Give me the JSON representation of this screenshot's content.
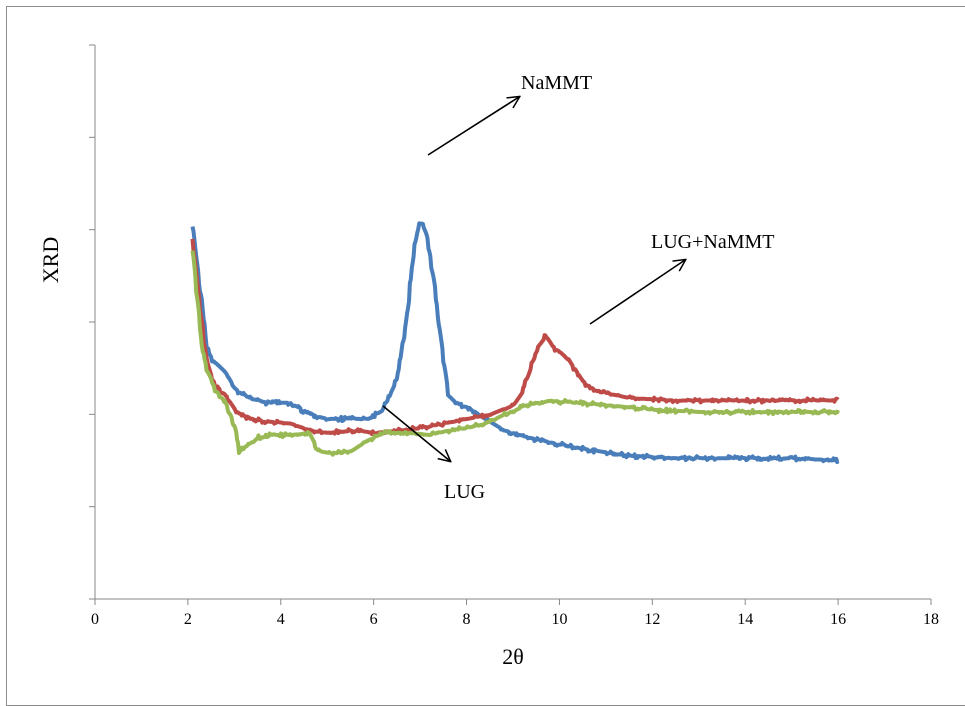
{
  "chart_data": {
    "type": "line",
    "title": "",
    "xlabel": "2θ",
    "ylabel": "XRD",
    "xlim": [
      0,
      18
    ],
    "x_ticks": [
      "0",
      "2",
      "4",
      "6",
      "8",
      "10",
      "12",
      "14",
      "16",
      "18"
    ],
    "y_ticks_labeled": false,
    "grid": false,
    "legend": "none",
    "series": [
      {
        "color": "#4a7ebb",
        "x": [
          2.1,
          2.15,
          2.2,
          2.3,
          2.4,
          2.5,
          2.6,
          2.8,
          3.0,
          3.3,
          3.7,
          4.2,
          4.6,
          5.0,
          5.5,
          5.9,
          6.2,
          6.5,
          6.7,
          6.85,
          6.95,
          7.05,
          7.15,
          7.3,
          7.45,
          7.6,
          7.75,
          8.0,
          8.3,
          8.8,
          9.5,
          10.5,
          11.5,
          12.5,
          14.0,
          15.0,
          16.0
        ],
        "y": [
          8.1,
          7.5,
          7.1,
          6.4,
          5.5,
          5.2,
          5.1,
          4.9,
          4.55,
          4.35,
          4.25,
          4.25,
          4.0,
          3.9,
          3.9,
          3.9,
          4.1,
          4.8,
          6.0,
          7.5,
          8.1,
          8.15,
          7.8,
          6.8,
          5.5,
          4.4,
          4.25,
          4.15,
          3.95,
          3.65,
          3.45,
          3.25,
          3.1,
          3.05,
          3.05,
          3.05,
          3.0
        ]
      },
      {
        "color": "#be4b48",
        "x": [
          2.1,
          2.15,
          2.2,
          2.3,
          2.4,
          2.5,
          2.6,
          2.8,
          3.0,
          3.2,
          3.6,
          4.2,
          4.6,
          5.0,
          5.6,
          6.0,
          6.6,
          7.0,
          7.5,
          8.0,
          8.5,
          9.0,
          9.2,
          9.4,
          9.55,
          9.7,
          9.85,
          10.0,
          10.2,
          10.5,
          10.8,
          11.5,
          12.5,
          14.0,
          16.0
        ],
        "y": [
          7.8,
          7.2,
          6.7,
          5.9,
          5.1,
          4.8,
          4.6,
          4.4,
          4.1,
          3.95,
          3.85,
          3.8,
          3.65,
          3.6,
          3.65,
          3.6,
          3.65,
          3.7,
          3.8,
          3.9,
          4.0,
          4.2,
          4.5,
          5.1,
          5.5,
          5.7,
          5.45,
          5.35,
          5.15,
          4.7,
          4.5,
          4.35,
          4.3,
          4.3,
          4.3
        ]
      },
      {
        "color": "#98b954",
        "x": [
          2.1,
          2.15,
          2.2,
          2.3,
          2.4,
          2.6,
          2.8,
          3.0,
          3.1,
          3.3,
          3.5,
          3.8,
          4.2,
          4.6,
          4.8,
          5.1,
          5.5,
          5.8,
          6.2,
          6.8,
          7.2,
          7.6,
          8.0,
          8.4,
          8.8,
          9.3,
          9.8,
          10.3,
          11.0,
          12.0,
          13.0,
          14.0,
          16.0
        ],
        "y": [
          7.5,
          6.9,
          6.4,
          5.5,
          4.95,
          4.5,
          4.25,
          3.75,
          3.2,
          3.35,
          3.5,
          3.55,
          3.55,
          3.6,
          3.2,
          3.15,
          3.2,
          3.4,
          3.6,
          3.6,
          3.55,
          3.65,
          3.7,
          3.8,
          4.0,
          4.2,
          4.3,
          4.25,
          4.2,
          4.1,
          4.05,
          4.05,
          4.05
        ]
      }
    ],
    "annotations": [
      {
        "text": "NaMMT"
      },
      {
        "text": "LUG+NaMMT"
      },
      {
        "text": "LUG"
      }
    ]
  }
}
